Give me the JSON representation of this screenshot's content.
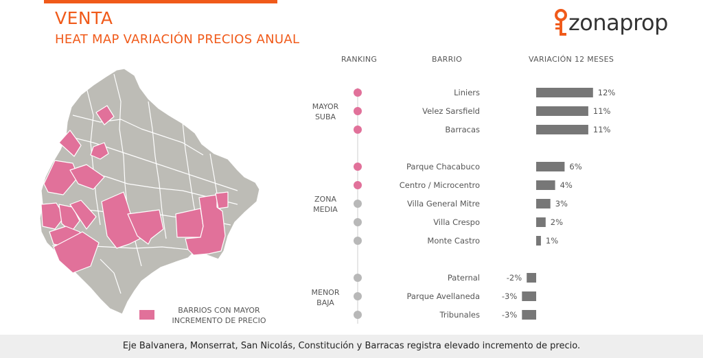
{
  "header": {
    "title": "VENTA",
    "subtitle": "HEAT MAP VARIACIÓN PRECIOS ANUAL",
    "logo_text": "zonaprop"
  },
  "legend": {
    "label_line1": "BARRIOS CON MAYOR",
    "label_line2": "INCREMENTO DE PRECIO"
  },
  "columns": {
    "ranking": "RANKING",
    "barrio": "BARRIO",
    "variacion": "VARIACIÓN 12 MESES"
  },
  "groups": [
    {
      "line1": "MAYOR",
      "line2": "SUBA"
    },
    {
      "line1": "ZONA",
      "line2": "MEDIA"
    },
    {
      "line1": "MENOR",
      "line2": "BAJA"
    }
  ],
  "colors": {
    "accent": "#f05a1a",
    "highlight": "#e1719a",
    "neutral_dot": "#b8b8b8",
    "bar": "#777777",
    "map_base": "#bdbcb6"
  },
  "footer": {
    "text": "Eje Balvanera, Monserrat, San Nicolás, Constitución y Barracas registra elevado incremento de precio."
  },
  "chart_data": {
    "type": "bar",
    "orientation": "horizontal",
    "categories": [
      "Liniers",
      "Velez Sarsfield",
      "Barracas",
      "Parque Chacabuco",
      "Centro / Microcentro",
      "Villa General Mitre",
      "Villa Crespo",
      "Monte Castro",
      "Paternal",
      "Parque Avellaneda",
      "Tribunales"
    ],
    "values": [
      12,
      11,
      11,
      6,
      4,
      3,
      2,
      1,
      -2,
      -3,
      -3
    ],
    "labels": [
      "12%",
      "11%",
      "11%",
      "6%",
      "4%",
      "3%",
      "2%",
      "1%",
      "-2%",
      "-3%",
      "-3%"
    ],
    "highlighted": [
      true,
      true,
      true,
      true,
      true,
      false,
      false,
      false,
      false,
      false,
      false
    ],
    "group_index": [
      0,
      0,
      0,
      1,
      1,
      1,
      1,
      1,
      2,
      2,
      2
    ],
    "unit": "%"
  }
}
